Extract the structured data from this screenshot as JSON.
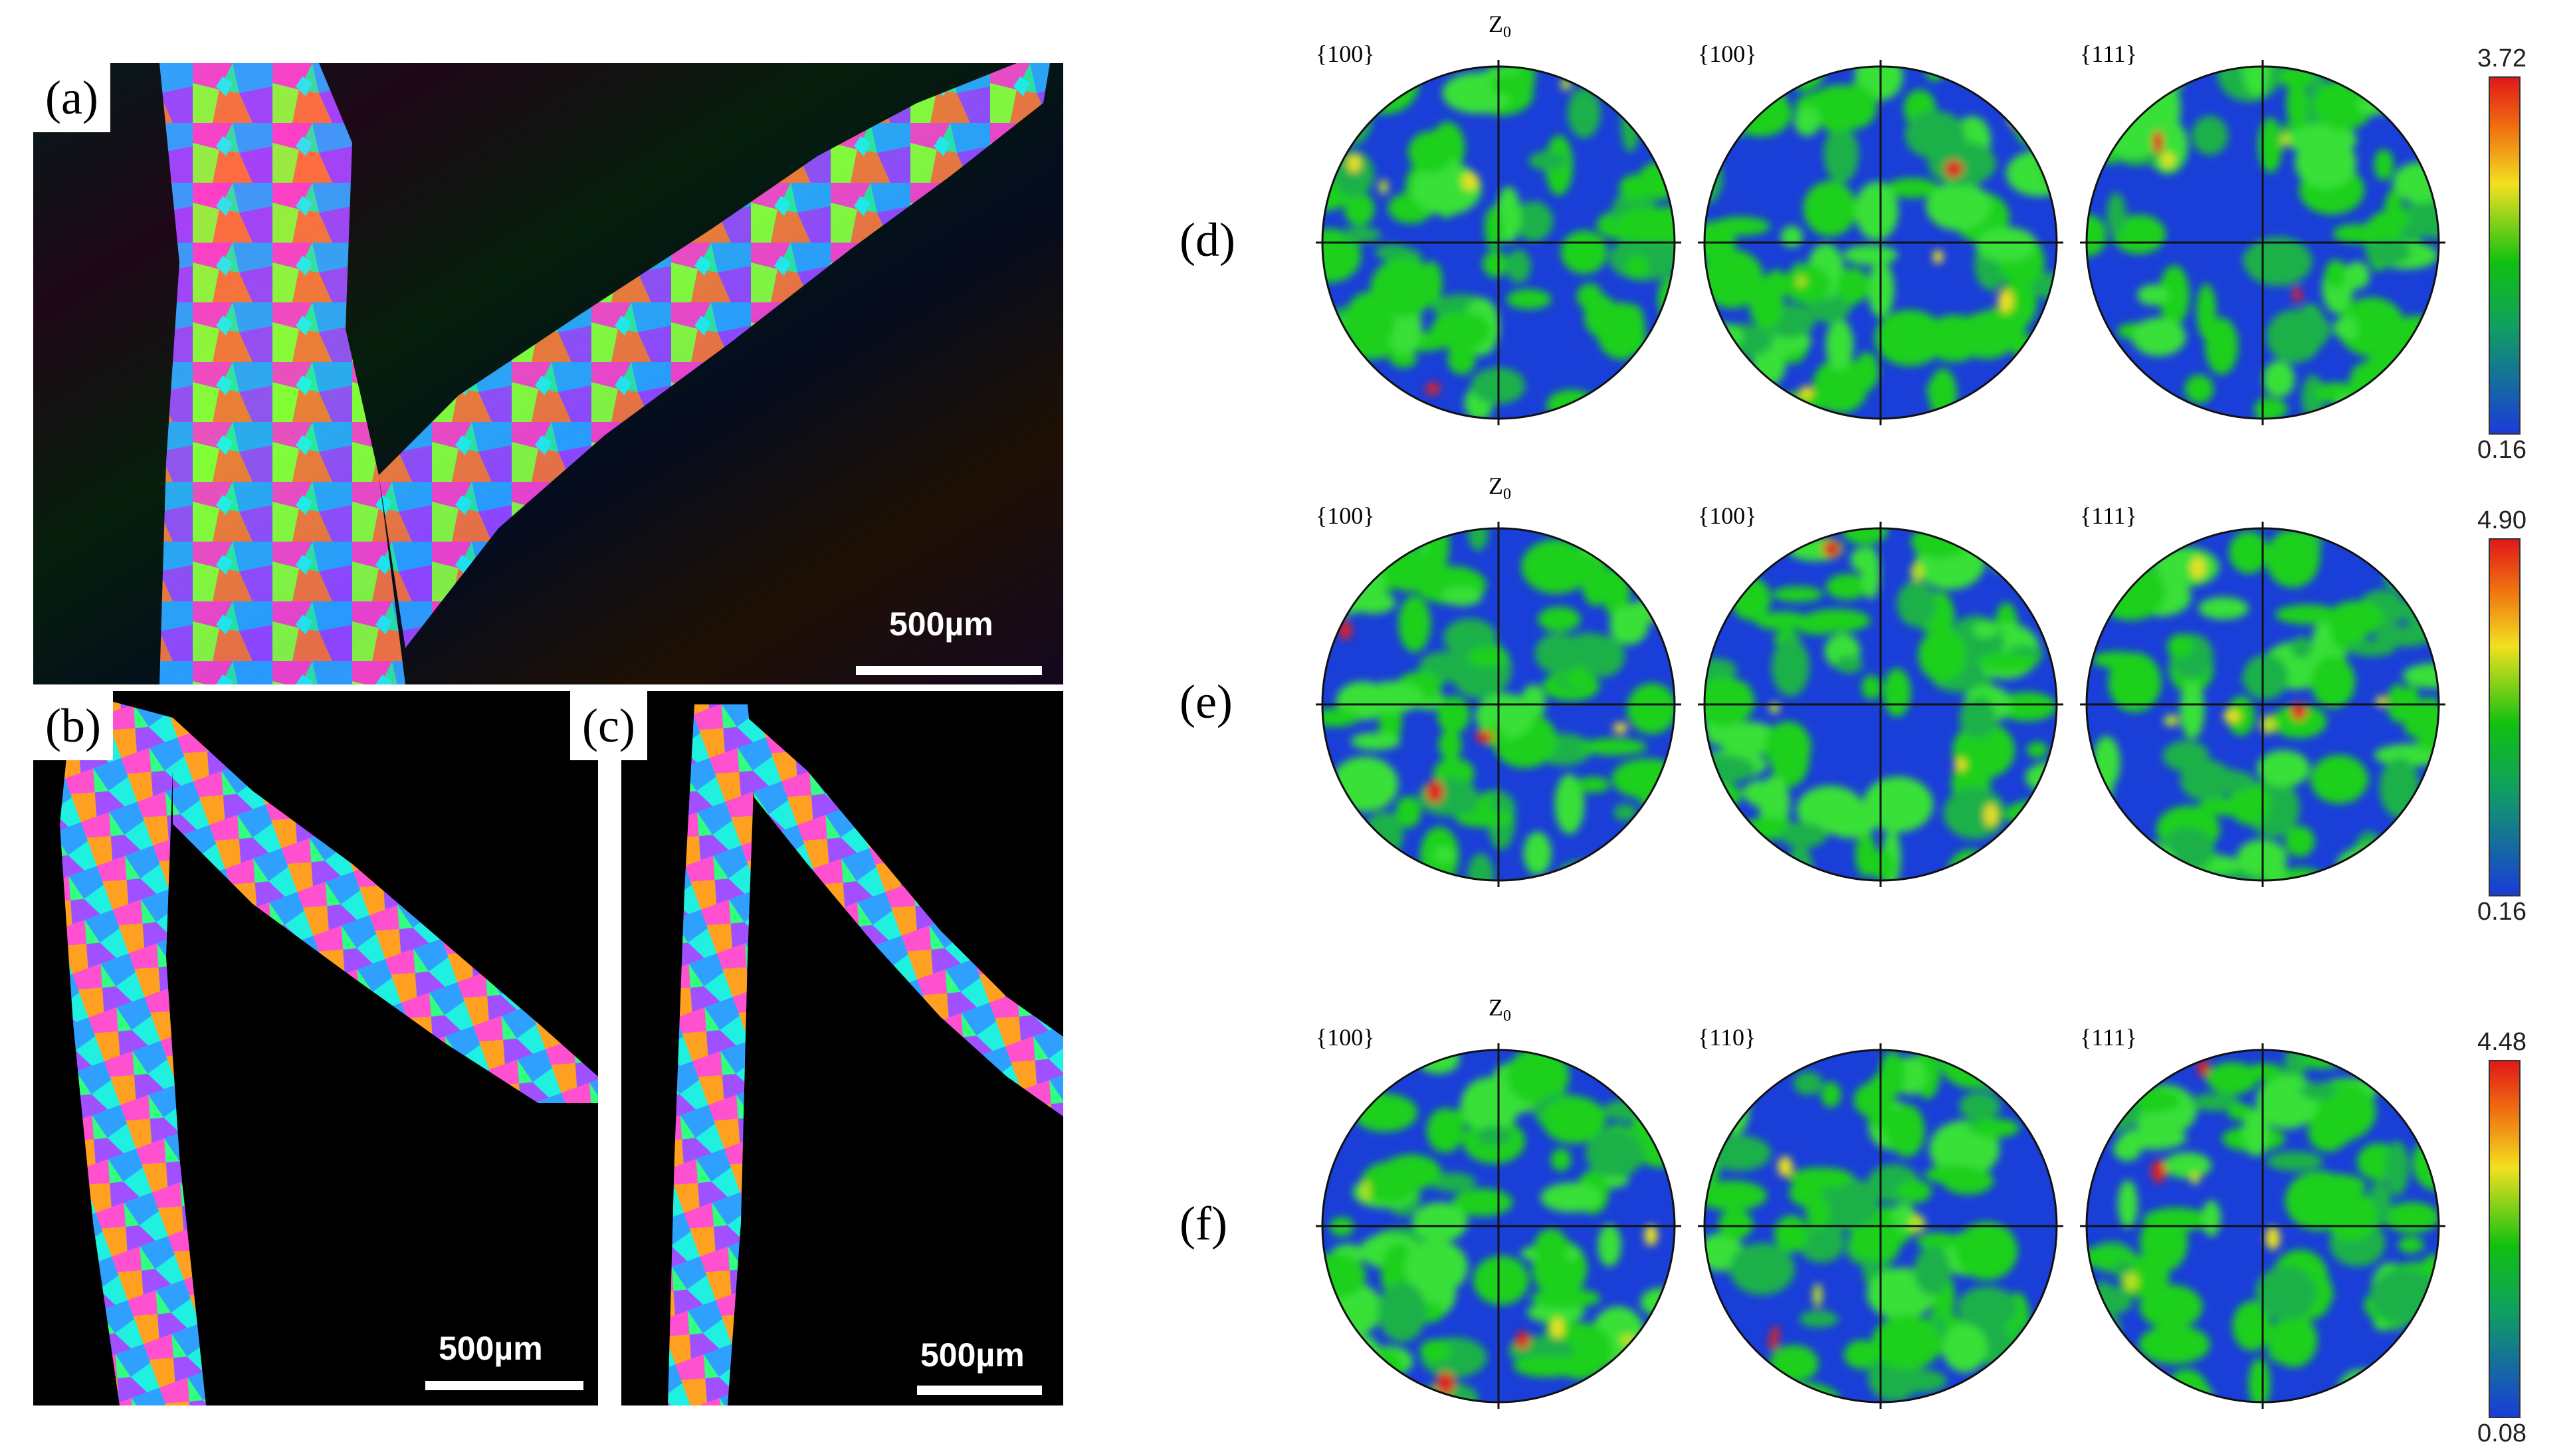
{
  "maps": [
    {
      "id": "a",
      "label": "(a)",
      "scale": "500µm"
    },
    {
      "id": "b",
      "label": "(b)",
      "scale": "500µm"
    },
    {
      "id": "c",
      "label": "(c)",
      "scale": "500µm"
    }
  ],
  "pole_figure_rows": [
    {
      "label": "(d)",
      "z0": "Z",
      "titles": [
        "{100}",
        "{100}",
        "{111}"
      ],
      "max": "3.72",
      "min": "0.16"
    },
    {
      "label": "(e)",
      "z0": "Z",
      "titles": [
        "{100}",
        "{100}",
        "{111}"
      ],
      "max": "4.90",
      "min": "0.16"
    },
    {
      "label": "(f)",
      "z0": "Z",
      "titles": [
        "{100}",
        "{110}",
        "{111}"
      ],
      "max": "4.48",
      "min": "0.08"
    }
  ],
  "z0_subscript": "0"
}
